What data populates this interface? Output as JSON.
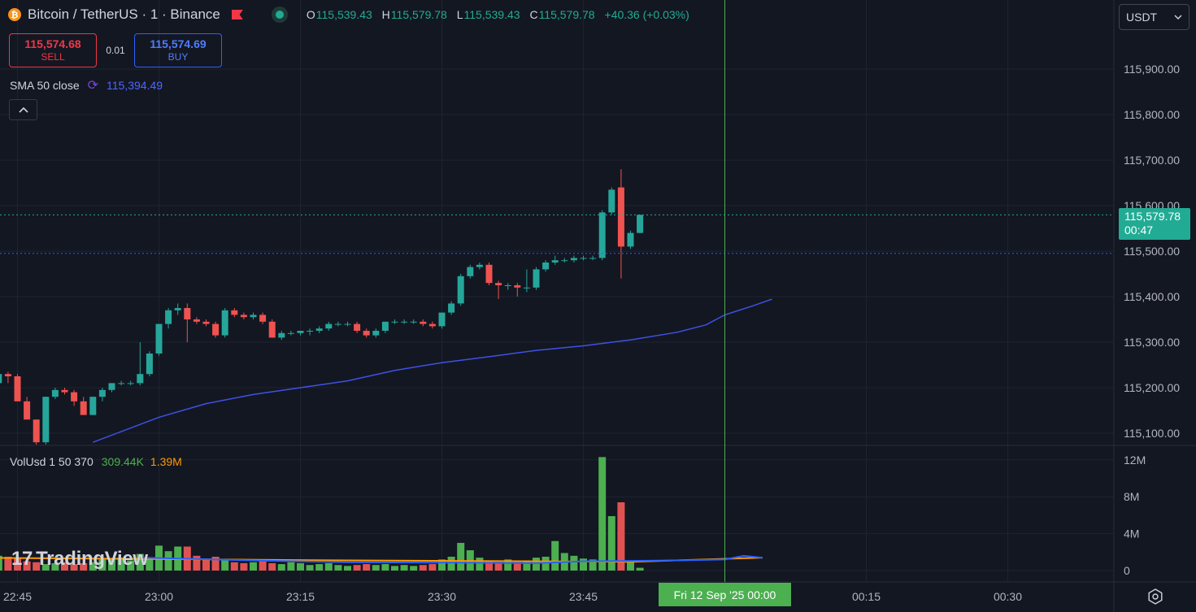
{
  "legend": {
    "coin_icon": "bitcoin-icon",
    "coin_glyph": "₿",
    "symbol": "Bitcoin / TetherUS · 1 · Binance",
    "open_label": "O",
    "open": "115,539.43",
    "high_label": "H",
    "high": "115,579.78",
    "low_label": "L",
    "low": "115,539.43",
    "close_label": "C",
    "close": "115,579.78",
    "change": "+40.36 (+0.03%)"
  },
  "trade": {
    "sell_price": "115,574.68",
    "sell_label": "SELL",
    "spread": "0.01",
    "buy_price": "115,574.69",
    "buy_label": "BUY"
  },
  "sma": {
    "label": "SMA 50 close",
    "value": "115,394.49"
  },
  "volume_legend": {
    "label": "VolUsd 1 50 370",
    "value1": "309.44K",
    "value2": "1.39M"
  },
  "currency_select": {
    "value": "USDT"
  },
  "price_label": {
    "price": "115,579.78",
    "countdown": "00:47"
  },
  "brand": {
    "name": "TradingView",
    "mark": "17"
  },
  "crosshair_time": "Fri 12 Sep '25   00:00",
  "colors": {
    "up": "#26a69a",
    "down": "#ef5350",
    "sma": "#3f51e6",
    "vol_up": "#4caf50",
    "vol_down": "#e05252",
    "vol_ma_slow": "#ff9800",
    "vol_ma_fast": "#2962ff",
    "crosshair": "#4caf50",
    "background": "#131722"
  },
  "chart_data": {
    "type": "candlestick",
    "price_axis": {
      "ticks": [
        115100,
        115200,
        115300,
        115400,
        115500,
        115600,
        115700,
        115800,
        115900
      ],
      "tick_labels": [
        "115,100.00",
        "115,200.00",
        "115,300.00",
        "115,400.00",
        "115,500.00",
        "115,600.00",
        "115,700.00",
        "115,800.00",
        "115,900.00"
      ]
    },
    "volume_axis": {
      "ticks": [
        0,
        4000000,
        8000000,
        12000000
      ],
      "tick_labels": [
        "0",
        "4M",
        "8M",
        "12M"
      ]
    },
    "time_axis": {
      "labels": [
        "22:45",
        "23:00",
        "23:15",
        "23:30",
        "23:45",
        "00:15",
        "00:30"
      ],
      "minutes": [
        -75,
        -60,
        -45,
        -30,
        -15,
        15,
        30
      ]
    },
    "last_price": 115579.78,
    "bid_line": 115495,
    "candles_ohlc_from_minute": -89,
    "candles": [
      [
        115200,
        115210,
        115080,
        115120
      ],
      [
        115120,
        115140,
        115100,
        115120
      ],
      [
        115120,
        115260,
        115110,
        115250
      ],
      [
        115250,
        115270,
        115220,
        115230
      ],
      [
        115230,
        115240,
        115220,
        115225
      ],
      [
        115225,
        115240,
        115210,
        115235
      ],
      [
        115235,
        115250,
        115220,
        115245
      ],
      [
        115245,
        115250,
        115220,
        115225
      ],
      [
        115225,
        115230,
        115220,
        115225
      ],
      [
        115225,
        115230,
        115220,
        115225
      ],
      [
        115225,
        115235,
        115220,
        115230
      ],
      [
        115230,
        115235,
        115200,
        115210
      ],
      [
        115210,
        115235,
        115200,
        115230
      ],
      [
        115230,
        115235,
        115210,
        115225
      ],
      [
        115225,
        115230,
        115170,
        115170
      ],
      [
        115170,
        115180,
        115130,
        115130
      ],
      [
        115130,
        115130,
        115060,
        115080
      ],
      [
        115080,
        115180,
        115075,
        115180
      ],
      [
        115180,
        115200,
        115175,
        115195
      ],
      [
        115195,
        115200,
        115185,
        115190
      ],
      [
        115190,
        115195,
        115160,
        115170
      ],
      [
        115170,
        115180,
        115140,
        115140
      ],
      [
        115140,
        115180,
        115140,
        115180
      ],
      [
        115180,
        115200,
        115170,
        115195
      ],
      [
        115195,
        115210,
        115190,
        115210
      ],
      [
        115210,
        115215,
        115205,
        115210
      ],
      [
        115210,
        115215,
        115205,
        115210
      ],
      [
        115210,
        115300,
        115205,
        115230
      ],
      [
        115230,
        115280,
        115225,
        115275
      ],
      [
        115275,
        115340,
        115270,
        115340
      ],
      [
        115340,
        115375,
        115330,
        115370
      ],
      [
        115370,
        115385,
        115360,
        115375
      ],
      [
        115375,
        115385,
        115300,
        115350
      ],
      [
        115350,
        115355,
        115340,
        115345
      ],
      [
        115345,
        115350,
        115335,
        115340
      ],
      [
        115340,
        115345,
        115310,
        115315
      ],
      [
        115315,
        115375,
        115310,
        115370
      ],
      [
        115370,
        115375,
        115355,
        115360
      ],
      [
        115360,
        115365,
        115350,
        115355
      ],
      [
        115355,
        115365,
        115350,
        115360
      ],
      [
        115360,
        115365,
        115340,
        115345
      ],
      [
        115345,
        115350,
        115310,
        115310
      ],
      [
        115310,
        115325,
        115305,
        115320
      ],
      [
        115320,
        115325,
        115315,
        115320
      ],
      [
        115320,
        115325,
        115315,
        115325
      ],
      [
        115325,
        115330,
        115315,
        115325
      ],
      [
        115325,
        115335,
        115320,
        115330
      ],
      [
        115330,
        115345,
        115325,
        115340
      ],
      [
        115340,
        115345,
        115335,
        115340
      ],
      [
        115340,
        115345,
        115335,
        115340
      ],
      [
        115340,
        115345,
        115320,
        115325
      ],
      [
        115325,
        115330,
        115310,
        115315
      ],
      [
        115315,
        115330,
        115310,
        115325
      ],
      [
        115325,
        115345,
        115320,
        115345
      ],
      [
        115345,
        115350,
        115340,
        115345
      ],
      [
        115345,
        115350,
        115340,
        115345
      ],
      [
        115345,
        115350,
        115340,
        115345
      ],
      [
        115345,
        115350,
        115335,
        115340
      ],
      [
        115340,
        115345,
        115330,
        115335
      ],
      [
        115335,
        115365,
        115330,
        115365
      ],
      [
        115365,
        115390,
        115360,
        115385
      ],
      [
        115385,
        115450,
        115380,
        115445
      ],
      [
        115445,
        115470,
        115440,
        115465
      ],
      [
        115465,
        115475,
        115460,
        115470
      ],
      [
        115470,
        115475,
        115425,
        115430
      ],
      [
        115430,
        115435,
        115395,
        115425
      ],
      [
        115425,
        115430,
        115415,
        115425
      ],
      [
        115425,
        115430,
        115400,
        115420
      ],
      [
        115420,
        115460,
        115410,
        115420
      ],
      [
        115420,
        115465,
        115415,
        115460
      ],
      [
        115460,
        115480,
        115455,
        115475
      ],
      [
        115475,
        115490,
        115470,
        115480
      ],
      [
        115480,
        115485,
        115475,
        115480
      ],
      [
        115480,
        115490,
        115475,
        115485
      ],
      [
        115485,
        115490,
        115480,
        115485
      ],
      [
        115485,
        115490,
        115480,
        115485
      ],
      [
        115485,
        115590,
        115480,
        115585
      ],
      [
        115585,
        115640,
        115580,
        115635
      ],
      [
        115640,
        115680,
        115440,
        115510
      ],
      [
        115510,
        115545,
        115505,
        115540
      ],
      [
        115540,
        115580,
        115539,
        115579.78
      ]
    ],
    "sma50": [
      [
        -67,
        115080
      ],
      [
        -60,
        115135
      ],
      [
        -55,
        115165
      ],
      [
        -50,
        115185
      ],
      [
        -45,
        115200
      ],
      [
        -40,
        115215
      ],
      [
        -35,
        115238
      ],
      [
        -30,
        115255
      ],
      [
        -25,
        115268
      ],
      [
        -20,
        115282
      ],
      [
        -15,
        115292
      ],
      [
        -10,
        115305
      ],
      [
        -5,
        115322
      ],
      [
        -2,
        115338
      ],
      [
        0,
        115360
      ],
      [
        3,
        115380
      ],
      [
        5,
        115394.49
      ]
    ],
    "volumes_from_minute": -89,
    "volumes": [
      1.0,
      0.8,
      1.1,
      1.4,
      0.9,
      1.2,
      1.3,
      1.1,
      0.8,
      0.9,
      1.0,
      1.4,
      1.6,
      1.5,
      1.3,
      1.0,
      0.9,
      0.7,
      0.8,
      0.9,
      0.7,
      0.8,
      0.9,
      1.2,
      1.3,
      1.4,
      1.1,
      1.8,
      1.4,
      2.7,
      2.1,
      2.6,
      2.6,
      1.6,
      1.2,
      1.5,
      1.1,
      0.9,
      0.8,
      0.9,
      1.0,
      0.8,
      0.7,
      0.9,
      0.8,
      0.6,
      0.7,
      0.8,
      0.6,
      0.5,
      0.6,
      0.7,
      0.6,
      0.7,
      0.5,
      0.6,
      0.5,
      0.6,
      0.7,
      1.2,
      1.5,
      3.0,
      2.2,
      1.4,
      1.0,
      0.8,
      1.2,
      0.9,
      1.1,
      1.4,
      1.5,
      3.2,
      1.9,
      1.6,
      1.3,
      1.2,
      12.3,
      5.9,
      7.4,
      1.1,
      0.3
    ],
    "volumes_unit": "M",
    "vol_ma_slow": [
      [
        -89,
        1.45
      ],
      [
        -40,
        1.1
      ],
      [
        -10,
        0.95
      ],
      [
        4,
        1.4
      ]
    ],
    "vol_ma_fast": [
      [
        -62,
        1.4
      ],
      [
        -50,
        1.1
      ],
      [
        -40,
        0.9
      ],
      [
        -20,
        0.8
      ],
      [
        -15,
        1.0
      ],
      [
        -5,
        1.1
      ],
      [
        0,
        1.2
      ],
      [
        2,
        1.6
      ],
      [
        4,
        1.39
      ]
    ]
  }
}
